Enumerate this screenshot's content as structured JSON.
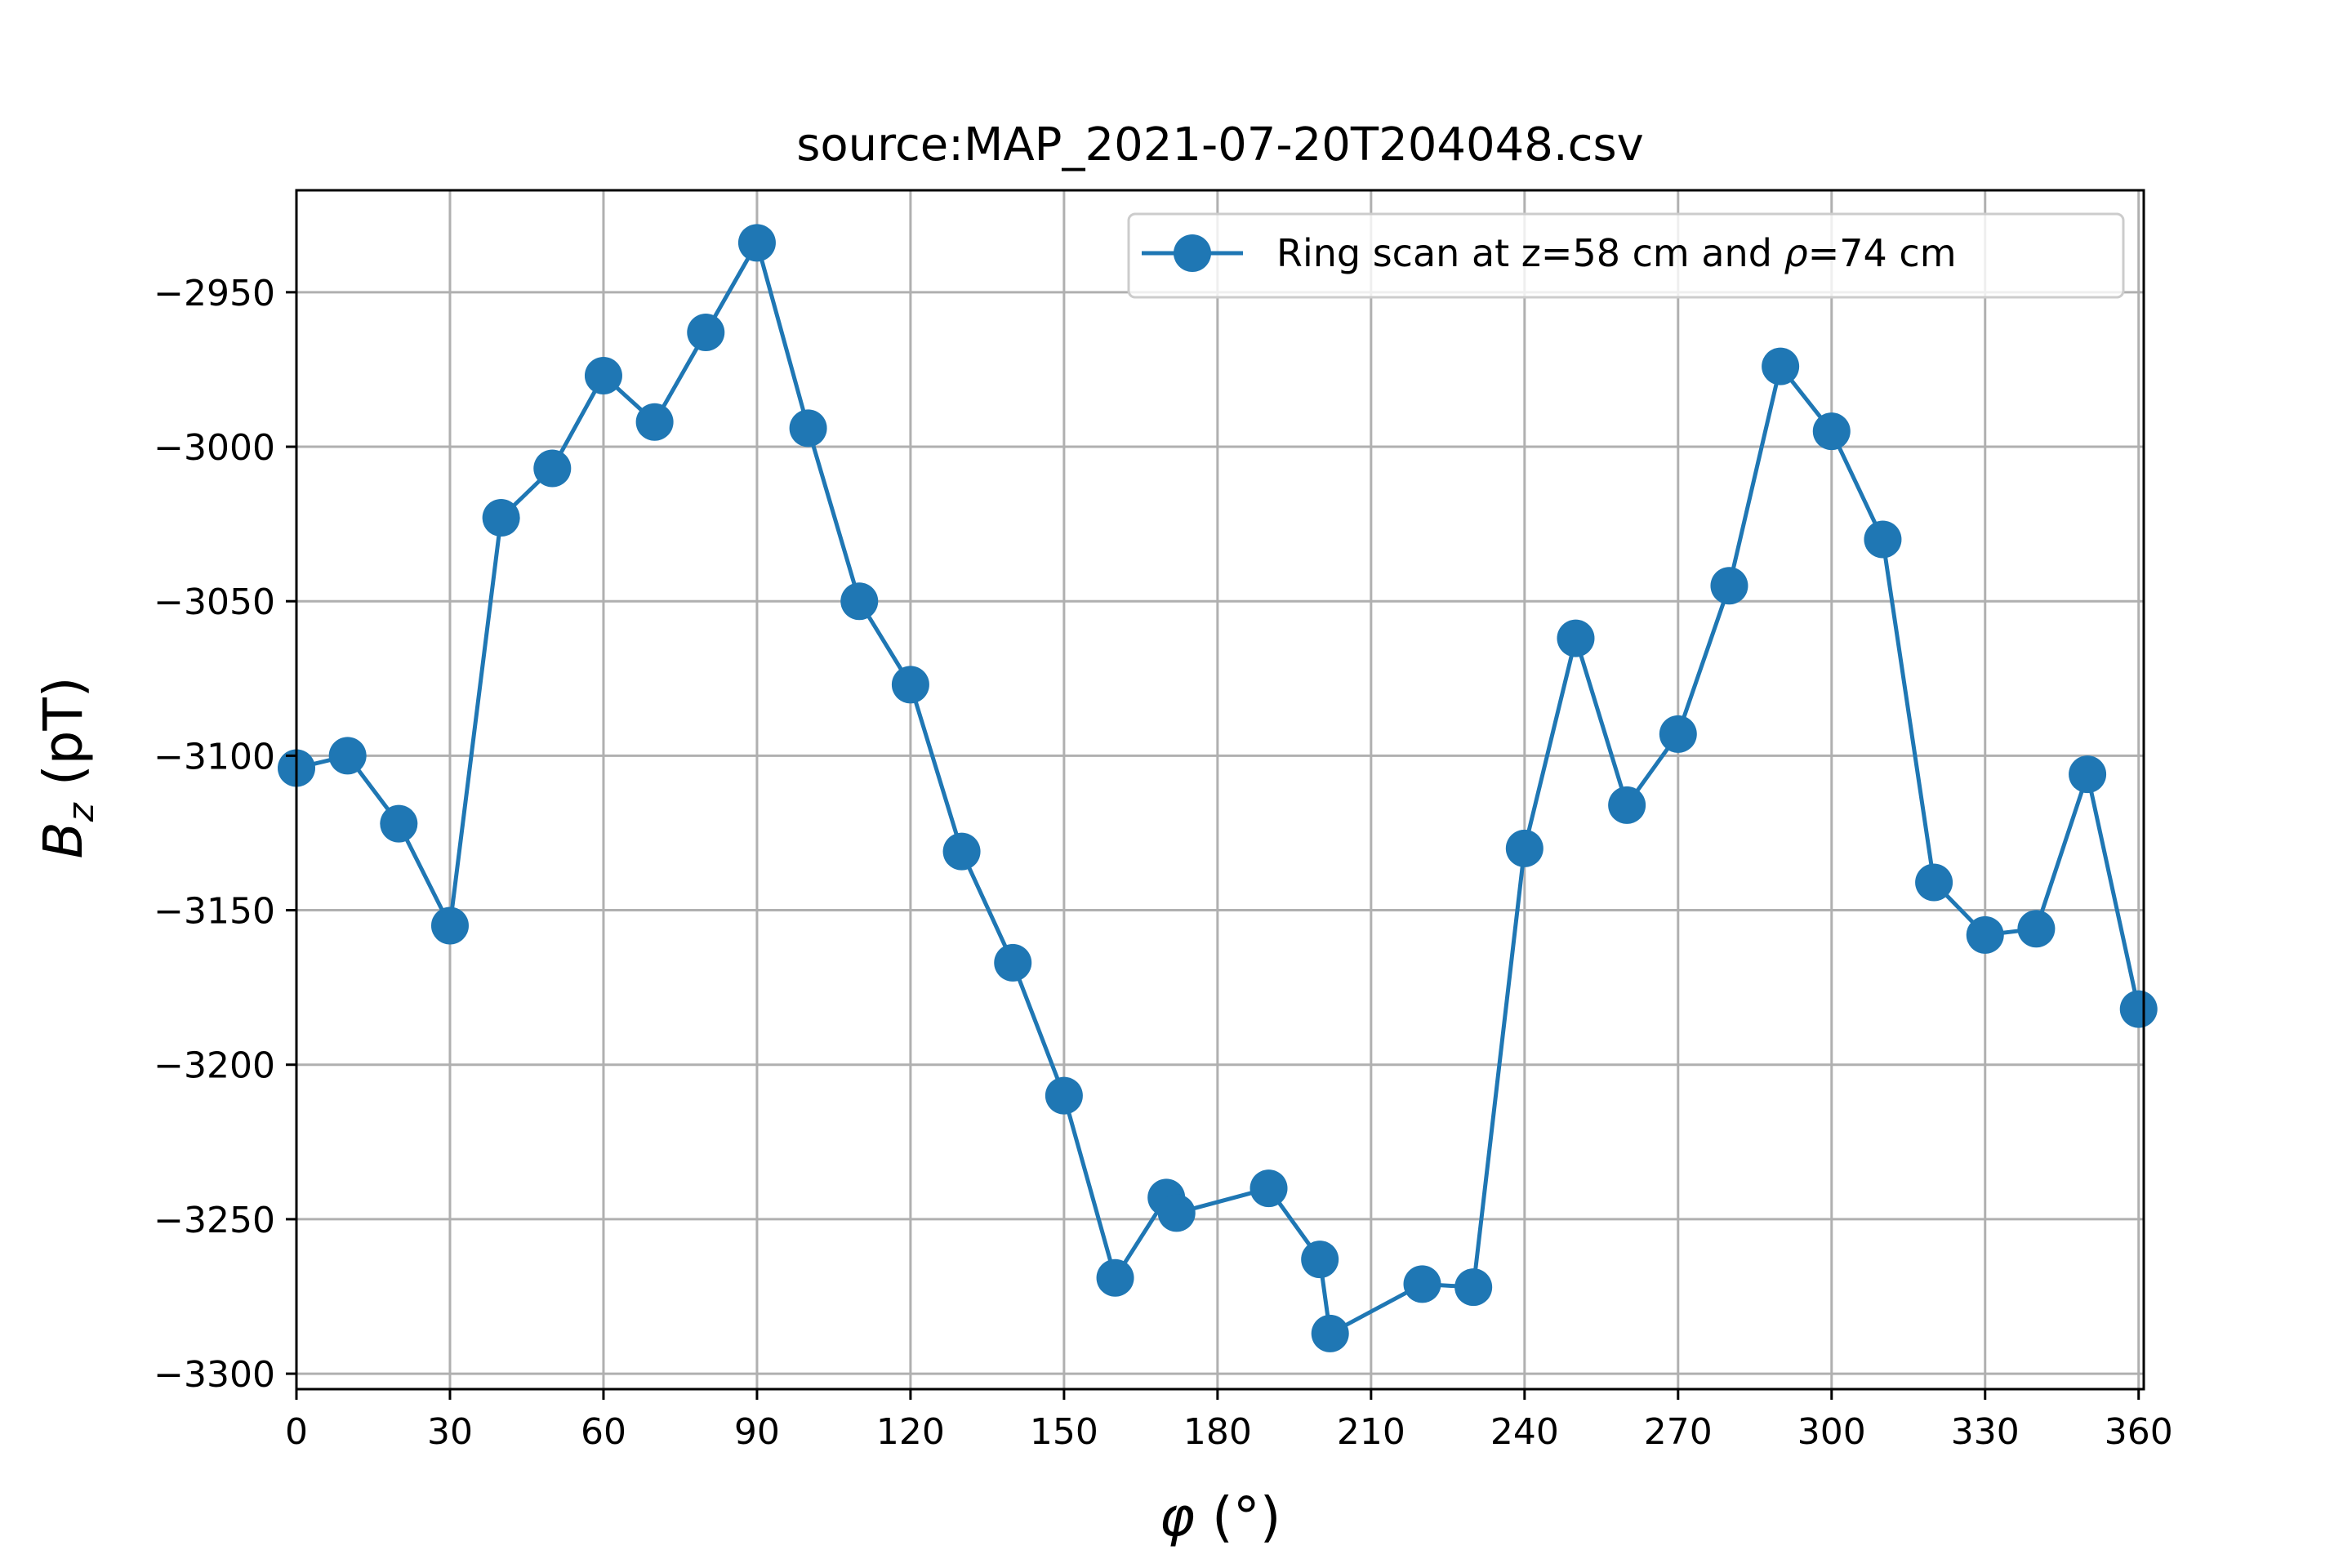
{
  "chart_data": {
    "type": "line",
    "title": "source:MAP_2021-07-20T204048.csv",
    "xlabel_symbol": "φ",
    "xlabel_unit": "(°)",
    "ylabel_symbol": "B",
    "ylabel_subscript": "z",
    "ylabel_unit": "(pT)",
    "xlim": [
      0,
      361
    ],
    "ylim": [
      -3305,
      -2917
    ],
    "xticks": [
      0,
      30,
      60,
      90,
      120,
      150,
      180,
      210,
      240,
      270,
      300,
      330,
      360
    ],
    "yticks": [
      -3300,
      -3250,
      -3200,
      -3150,
      -3100,
      -3050,
      -3000,
      -2950
    ],
    "ytick_labels": [
      "−3300",
      "−3250",
      "−3200",
      "−3150",
      "−3100",
      "−3050",
      "−3000",
      "−2950"
    ],
    "grid": true,
    "legend_position": "top-right",
    "colors": {
      "series": "#1f77b4",
      "grid": "#b0b0b0",
      "axes": "#000000"
    },
    "series": [
      {
        "legend_prefix": "Ring scan at z=58 cm and ",
        "legend_symbol": "ρ",
        "legend_suffix": "=74 cm",
        "marker": "circle",
        "x": [
          0,
          10,
          20,
          30,
          40,
          50,
          60,
          70,
          80,
          90,
          100,
          110,
          120,
          130,
          140,
          150,
          160,
          170,
          172,
          190,
          200,
          202,
          220,
          230,
          240,
          250,
          260,
          270,
          280,
          290,
          300,
          310,
          320,
          330,
          340,
          350,
          360
        ],
        "y": [
          -3104,
          -3100,
          -3122,
          -3155,
          -3023,
          -3007,
          -2977,
          -2992,
          -2963,
          -2934,
          -2994,
          -3050,
          -3077,
          -3131,
          -3167,
          -3210,
          -3269,
          -3243,
          -3248,
          -3240,
          -3263,
          -3287,
          -3271,
          -3272,
          -3130,
          -3062,
          -3116,
          -3093,
          -3045,
          -2974,
          -2995,
          -3030,
          -3141,
          -3158,
          -3156,
          -3106,
          -3182
        ]
      }
    ]
  }
}
